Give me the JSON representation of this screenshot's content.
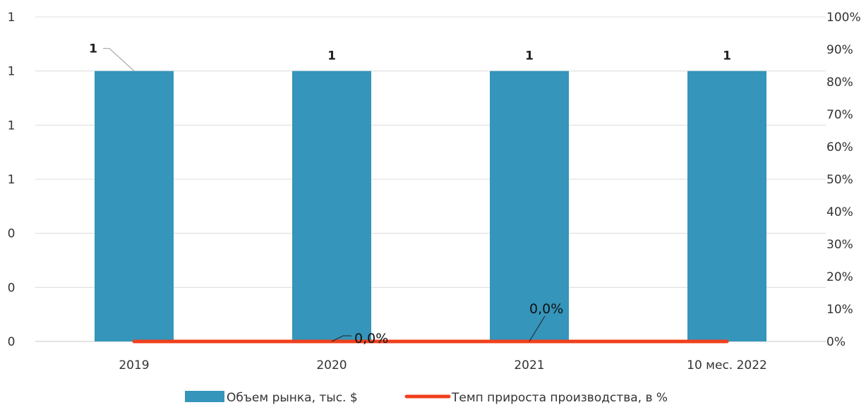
{
  "chart_data": {
    "type": "bar",
    "categories": [
      "2019",
      "2020",
      "2021",
      "10 мес. 2022"
    ],
    "y_left_ticks": [
      "0",
      "0",
      "0",
      "1",
      "1",
      "1",
      "1"
    ],
    "y_right_ticks": [
      "0%",
      "10%",
      "20%",
      "30%",
      "40%",
      "50%",
      "60%",
      "70%",
      "80%",
      "90%",
      "100%"
    ],
    "y_left_range": [
      0,
      1.2
    ],
    "y_right_range": [
      0,
      100
    ],
    "grid": true,
    "legend_position": "bottom",
    "series": [
      {
        "name": "Объем рынка, тыс. $",
        "type": "bar",
        "axis": "left",
        "color": "#3595bb",
        "values": [
          1,
          1,
          1,
          1
        ],
        "data_labels": [
          "1",
          "1",
          "1",
          "1"
        ]
      },
      {
        "name": "Темп прироста производства, в %",
        "type": "line",
        "axis": "right",
        "color": "#f0401c",
        "values": [
          0,
          0,
          0,
          0
        ],
        "data_labels": [
          "0,0%",
          "0,0%"
        ]
      }
    ]
  }
}
